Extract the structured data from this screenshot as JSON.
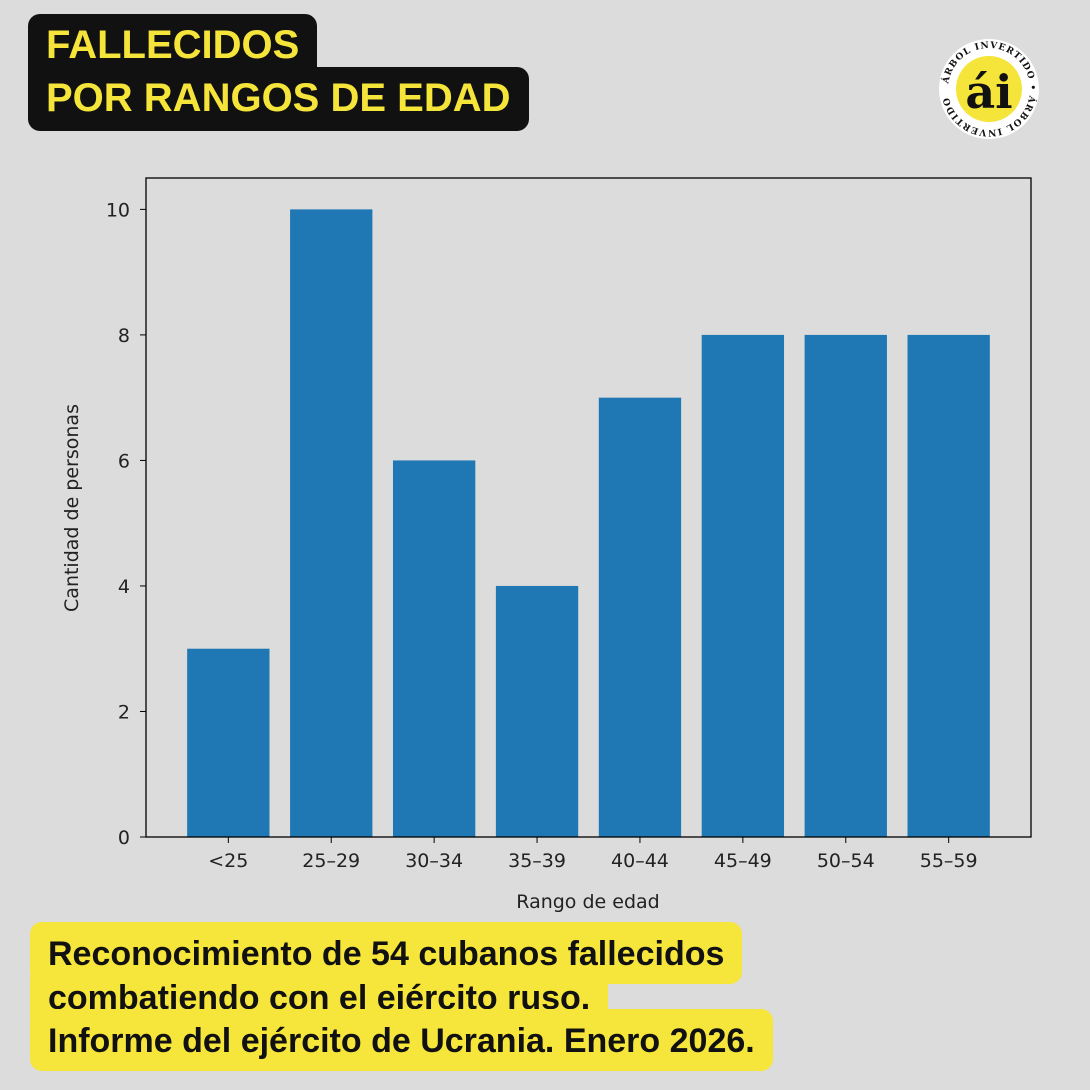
{
  "header": {
    "title_line1": "FALLECIDOS",
    "title_line2": "POR RANGOS DE EDAD"
  },
  "logo": {
    "text": "ÁRBOL INVERTIDO",
    "mark": "ái",
    "colors": {
      "yellow": "#f5e43a",
      "black": "#111111"
    }
  },
  "chart_data": {
    "type": "bar",
    "categories": [
      "<25",
      "25–29",
      "30–34",
      "35–39",
      "40–44",
      "45–49",
      "50–54",
      "55–59"
    ],
    "values": [
      3,
      10,
      6,
      4,
      7,
      8,
      8,
      8
    ],
    "xlabel": "Rango de edad",
    "ylabel": "Cantidad de personas",
    "ylim": [
      0,
      10.5
    ],
    "yticks": [
      0,
      2,
      4,
      6,
      8,
      10
    ],
    "grid": false,
    "color": "#1f77b4"
  },
  "caption": {
    "line1": "Reconocimiento de 54 cubanos fallecidos",
    "line2": "combatiendo con el ejército ruso.",
    "line3": "Informe del ejército de Ucrania. Enero 2026."
  }
}
